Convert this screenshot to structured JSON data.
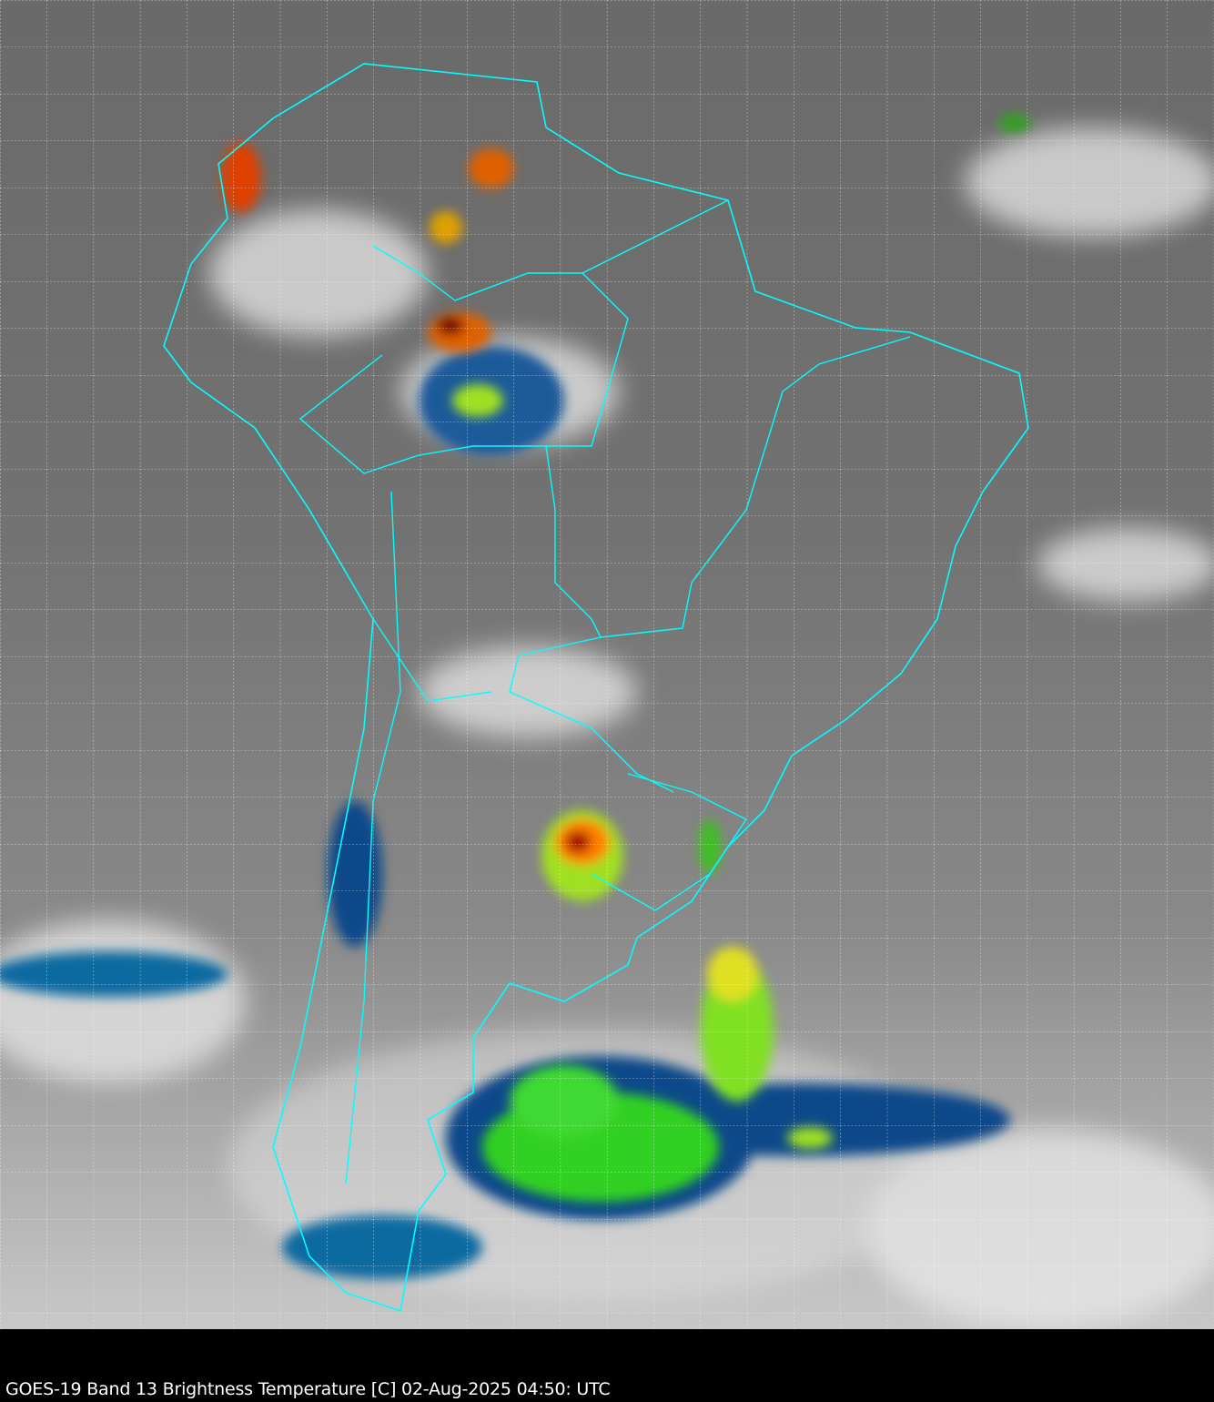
{
  "caption": "GOES-19 Band 13  Brightness Temperature [C] 02-Aug-2025 04:50: UTC",
  "map": {
    "region": "South America",
    "colors": {
      "border": "#00ffff",
      "grid": "#ffffff",
      "background": "#000000"
    },
    "colorscale": [
      "#ffffff",
      "#00c8ff",
      "#004080",
      "#00ff00",
      "#ffff00",
      "#ff0000",
      "#600000"
    ]
  }
}
